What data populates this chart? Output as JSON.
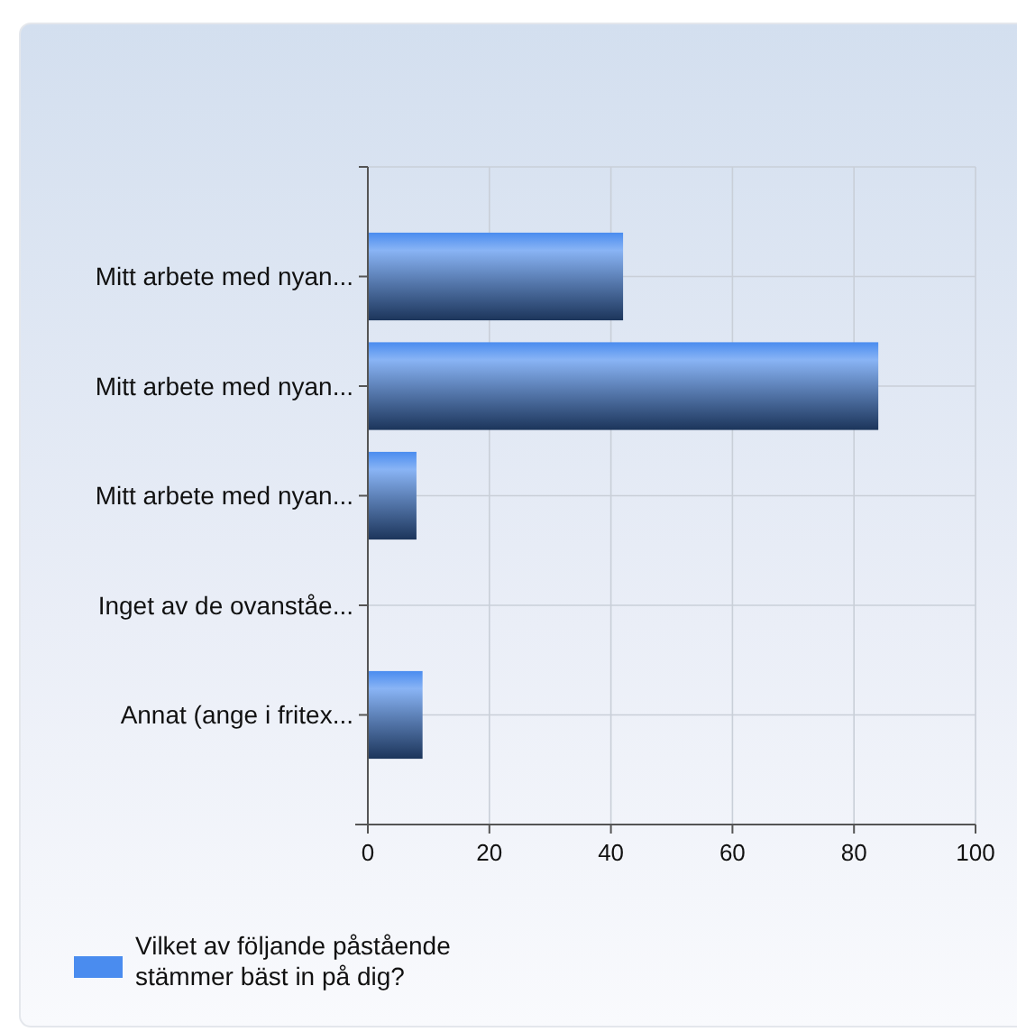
{
  "chart_data": {
    "type": "bar",
    "orientation": "horizontal",
    "categories": [
      "Mitt arbete med nyan...",
      "Mitt arbete med nyan...",
      "Mitt arbete med nyan...",
      "Inget av de ovanståe...",
      "Annat (ange i fritex..."
    ],
    "series": [
      {
        "name": "Vilket av följande påstående stämmer bäst in på dig?",
        "color": "#4a8cef",
        "values": [
          42,
          84,
          8,
          0,
          9
        ]
      }
    ],
    "xlim": [
      0,
      100
    ],
    "xticks": [
      0,
      20,
      40,
      60,
      80,
      100
    ],
    "grid": true,
    "legend": "bottom left"
  }
}
